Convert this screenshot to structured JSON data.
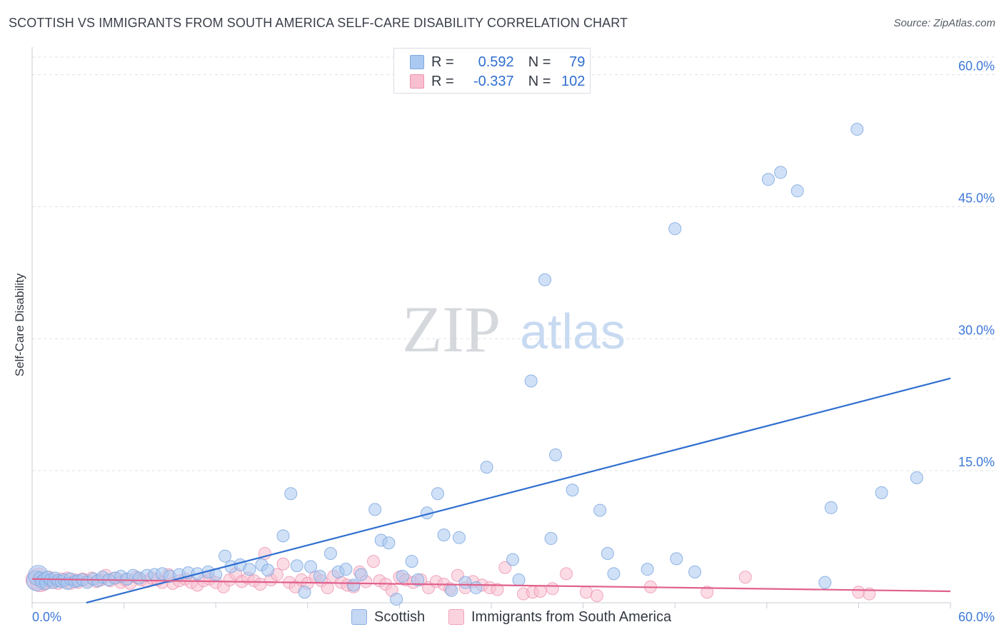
{
  "header": {
    "title": "SCOTTISH VS IMMIGRANTS FROM SOUTH AMERICA SELF-CARE DISABILITY CORRELATION CHART",
    "source": "Source: ZipAtlas.com"
  },
  "watermark": {
    "zip": "ZIP",
    "atlas": "atlas"
  },
  "legend_stats": [
    {
      "r_label": "R =",
      "r_value": "0.592",
      "n_label": "N =",
      "n_value": "79"
    },
    {
      "r_label": "R =",
      "r_value": "-0.337",
      "n_label": "N =",
      "n_value": "102"
    }
  ],
  "colors": {
    "blue_fill": "#aac8f0",
    "blue_stroke": "#7fa8e0",
    "blue_line": "#2f6fd0",
    "pink_fill": "#f7bfd0",
    "pink_stroke": "#ee92b0",
    "pink_line": "#e0608c",
    "grid": "#dfe3e8",
    "tick_text": "#3d78d8"
  },
  "chart_data": {
    "type": "scatter",
    "title": "SCOTTISH VS IMMIGRANTS FROM SOUTH AMERICA SELF-CARE DISABILITY CORRELATION CHART",
    "xlabel": "",
    "ylabel": "Self-Care Disability",
    "xlim": [
      0,
      60
    ],
    "ylim": [
      0,
      62
    ],
    "x_tick_labels": [
      "0.0%",
      "60.0%"
    ],
    "y_ticks": [
      15,
      30,
      45,
      60
    ],
    "y_tick_labels": [
      "15.0%",
      "30.0%",
      "45.0%",
      "60.0%"
    ],
    "legend_position": "top-center",
    "series": [
      {
        "name": "Scottish",
        "r": 0.592,
        "n": 79,
        "trend": [
          [
            0,
            -1.6
          ],
          [
            60,
            25.5
          ]
        ],
        "points": [
          [
            0.3,
            2.5
          ],
          [
            0.4,
            3.1
          ],
          [
            0.5,
            2.8
          ],
          [
            0.6,
            2.4
          ],
          [
            0.8,
            2.7
          ],
          [
            0.9,
            2.2
          ],
          [
            1.0,
            2.9
          ],
          [
            1.2,
            2.6
          ],
          [
            1.4,
            2.3
          ],
          [
            1.5,
            2.8
          ],
          [
            1.7,
            2.5
          ],
          [
            1.9,
            2.4
          ],
          [
            2.1,
            2.6
          ],
          [
            2.3,
            2.2
          ],
          [
            2.5,
            2.7
          ],
          [
            2.8,
            2.4
          ],
          [
            3.0,
            2.5
          ],
          [
            3.3,
            2.6
          ],
          [
            3.6,
            2.3
          ],
          [
            4.0,
            2.7
          ],
          [
            4.3,
            2.5
          ],
          [
            4.6,
            2.9
          ],
          [
            5.0,
            2.6
          ],
          [
            5.4,
            2.8
          ],
          [
            5.8,
            3.0
          ],
          [
            6.2,
            2.7
          ],
          [
            6.6,
            3.1
          ],
          [
            7.0,
            2.8
          ],
          [
            7.5,
            3.1
          ],
          [
            8.0,
            3.2
          ],
          [
            8.5,
            3.3
          ],
          [
            9.0,
            3.0
          ],
          [
            9.6,
            3.2
          ],
          [
            10.2,
            3.4
          ],
          [
            10.8,
            3.3
          ],
          [
            11.5,
            3.5
          ],
          [
            12.0,
            3.2
          ],
          [
            12.6,
            5.3
          ],
          [
            13.0,
            4.1
          ],
          [
            13.6,
            4.3
          ],
          [
            14.2,
            3.8
          ],
          [
            15.0,
            4.3
          ],
          [
            15.4,
            3.7
          ],
          [
            16.4,
            7.6
          ],
          [
            16.9,
            12.4
          ],
          [
            17.3,
            4.2
          ],
          [
            17.8,
            1.2
          ],
          [
            18.2,
            4.1
          ],
          [
            18.8,
            3.0
          ],
          [
            19.5,
            5.6
          ],
          [
            20.0,
            3.5
          ],
          [
            20.5,
            3.8
          ],
          [
            21.0,
            2.0
          ],
          [
            21.5,
            3.2
          ],
          [
            22.4,
            10.6
          ],
          [
            22.8,
            7.1
          ],
          [
            23.3,
            6.8
          ],
          [
            23.8,
            0.4
          ],
          [
            24.2,
            3.0
          ],
          [
            24.8,
            4.7
          ],
          [
            25.2,
            2.6
          ],
          [
            25.8,
            10.2
          ],
          [
            26.5,
            12.4
          ],
          [
            26.9,
            7.7
          ],
          [
            27.4,
            1.4
          ],
          [
            27.9,
            7.4
          ],
          [
            28.3,
            2.3
          ],
          [
            29.0,
            1.7
          ],
          [
            29.7,
            15.4
          ],
          [
            31.4,
            4.9
          ],
          [
            31.8,
            2.6
          ],
          [
            32.6,
            25.2
          ],
          [
            33.5,
            36.7
          ],
          [
            33.9,
            7.3
          ],
          [
            34.2,
            16.8
          ],
          [
            35.3,
            12.8
          ],
          [
            37.1,
            10.5
          ],
          [
            37.6,
            5.6
          ],
          [
            38.0,
            3.3
          ],
          [
            40.2,
            3.8
          ],
          [
            42.0,
            42.5
          ],
          [
            42.1,
            5.0
          ],
          [
            43.3,
            3.5
          ],
          [
            48.1,
            48.1
          ],
          [
            48.9,
            48.9
          ],
          [
            50.0,
            46.8
          ],
          [
            51.8,
            2.3
          ],
          [
            52.2,
            10.8
          ],
          [
            53.9,
            53.8
          ],
          [
            55.5,
            12.5
          ],
          [
            57.8,
            14.2
          ]
        ]
      },
      {
        "name": "Immigrants from South America",
        "r": -0.337,
        "n": 102,
        "trend": [
          [
            0,
            2.7
          ],
          [
            60,
            1.3
          ]
        ],
        "points": [
          [
            0.2,
            2.6
          ],
          [
            0.4,
            2.9
          ],
          [
            0.5,
            2.3
          ],
          [
            0.7,
            2.7
          ],
          [
            0.8,
            2.1
          ],
          [
            1.0,
            2.5
          ],
          [
            1.1,
            2.9
          ],
          [
            1.3,
            2.3
          ],
          [
            1.5,
            2.6
          ],
          [
            1.7,
            2.2
          ],
          [
            1.9,
            2.7
          ],
          [
            2.1,
            2.4
          ],
          [
            2.3,
            2.8
          ],
          [
            2.5,
            2.2
          ],
          [
            2.8,
            2.6
          ],
          [
            3.0,
            2.3
          ],
          [
            3.3,
            2.7
          ],
          [
            3.6,
            2.5
          ],
          [
            3.9,
            2.8
          ],
          [
            4.2,
            2.4
          ],
          [
            4.5,
            2.6
          ],
          [
            4.8,
            3.1
          ],
          [
            5.1,
            2.5
          ],
          [
            5.5,
            2.8
          ],
          [
            5.8,
            2.3
          ],
          [
            6.1,
            2.6
          ],
          [
            6.4,
            2.2
          ],
          [
            6.8,
            2.9
          ],
          [
            7.1,
            2.6
          ],
          [
            7.5,
            2.4
          ],
          [
            7.8,
            2.8
          ],
          [
            8.2,
            2.6
          ],
          [
            8.5,
            2.3
          ],
          [
            8.9,
            3.2
          ],
          [
            9.2,
            2.2
          ],
          [
            9.6,
            2.5
          ],
          [
            10.0,
            2.7
          ],
          [
            10.4,
            2.3
          ],
          [
            10.8,
            2.0
          ],
          [
            11.2,
            2.5
          ],
          [
            11.6,
            2.7
          ],
          [
            12.0,
            2.3
          ],
          [
            12.5,
            1.8
          ],
          [
            12.9,
            2.6
          ],
          [
            13.3,
            3.3
          ],
          [
            13.7,
            2.4
          ],
          [
            14.1,
            2.8
          ],
          [
            14.5,
            2.5
          ],
          [
            14.9,
            2.1
          ],
          [
            15.2,
            5.6
          ],
          [
            15.6,
            2.6
          ],
          [
            16.0,
            3.2
          ],
          [
            16.4,
            4.4
          ],
          [
            16.8,
            2.3
          ],
          [
            17.2,
            1.8
          ],
          [
            17.6,
            2.6
          ],
          [
            18.0,
            2.2
          ],
          [
            18.5,
            2.9
          ],
          [
            18.9,
            2.5
          ],
          [
            19.3,
            1.7
          ],
          [
            19.7,
            3.0
          ],
          [
            20.2,
            2.3
          ],
          [
            20.6,
            2.0
          ],
          [
            21.0,
            1.8
          ],
          [
            21.4,
            3.5
          ],
          [
            21.8,
            2.4
          ],
          [
            22.3,
            4.7
          ],
          [
            22.7,
            2.5
          ],
          [
            23.1,
            2.1
          ],
          [
            23.5,
            1.4
          ],
          [
            24.0,
            2.9
          ],
          [
            24.4,
            2.6
          ],
          [
            24.9,
            2.3
          ],
          [
            25.4,
            2.6
          ],
          [
            25.9,
            1.7
          ],
          [
            26.4,
            2.4
          ],
          [
            26.9,
            2.1
          ],
          [
            27.3,
            1.6
          ],
          [
            27.8,
            3.1
          ],
          [
            28.3,
            1.7
          ],
          [
            28.8,
            2.4
          ],
          [
            29.4,
            2.0
          ],
          [
            29.9,
            1.7
          ],
          [
            30.4,
            1.5
          ],
          [
            30.9,
            4.0
          ],
          [
            32.1,
            1.0
          ],
          [
            32.7,
            1.2
          ],
          [
            33.2,
            1.3
          ],
          [
            34.0,
            1.6
          ],
          [
            34.9,
            3.3
          ],
          [
            36.2,
            1.2
          ],
          [
            36.9,
            0.8
          ],
          [
            40.4,
            1.8
          ],
          [
            44.1,
            1.2
          ],
          [
            46.6,
            2.9
          ],
          [
            54.0,
            1.2
          ],
          [
            54.7,
            1.0
          ]
        ]
      }
    ]
  },
  "bottom_legend": [
    {
      "label": "Scottish"
    },
    {
      "label": "Immigrants from South America"
    }
  ]
}
